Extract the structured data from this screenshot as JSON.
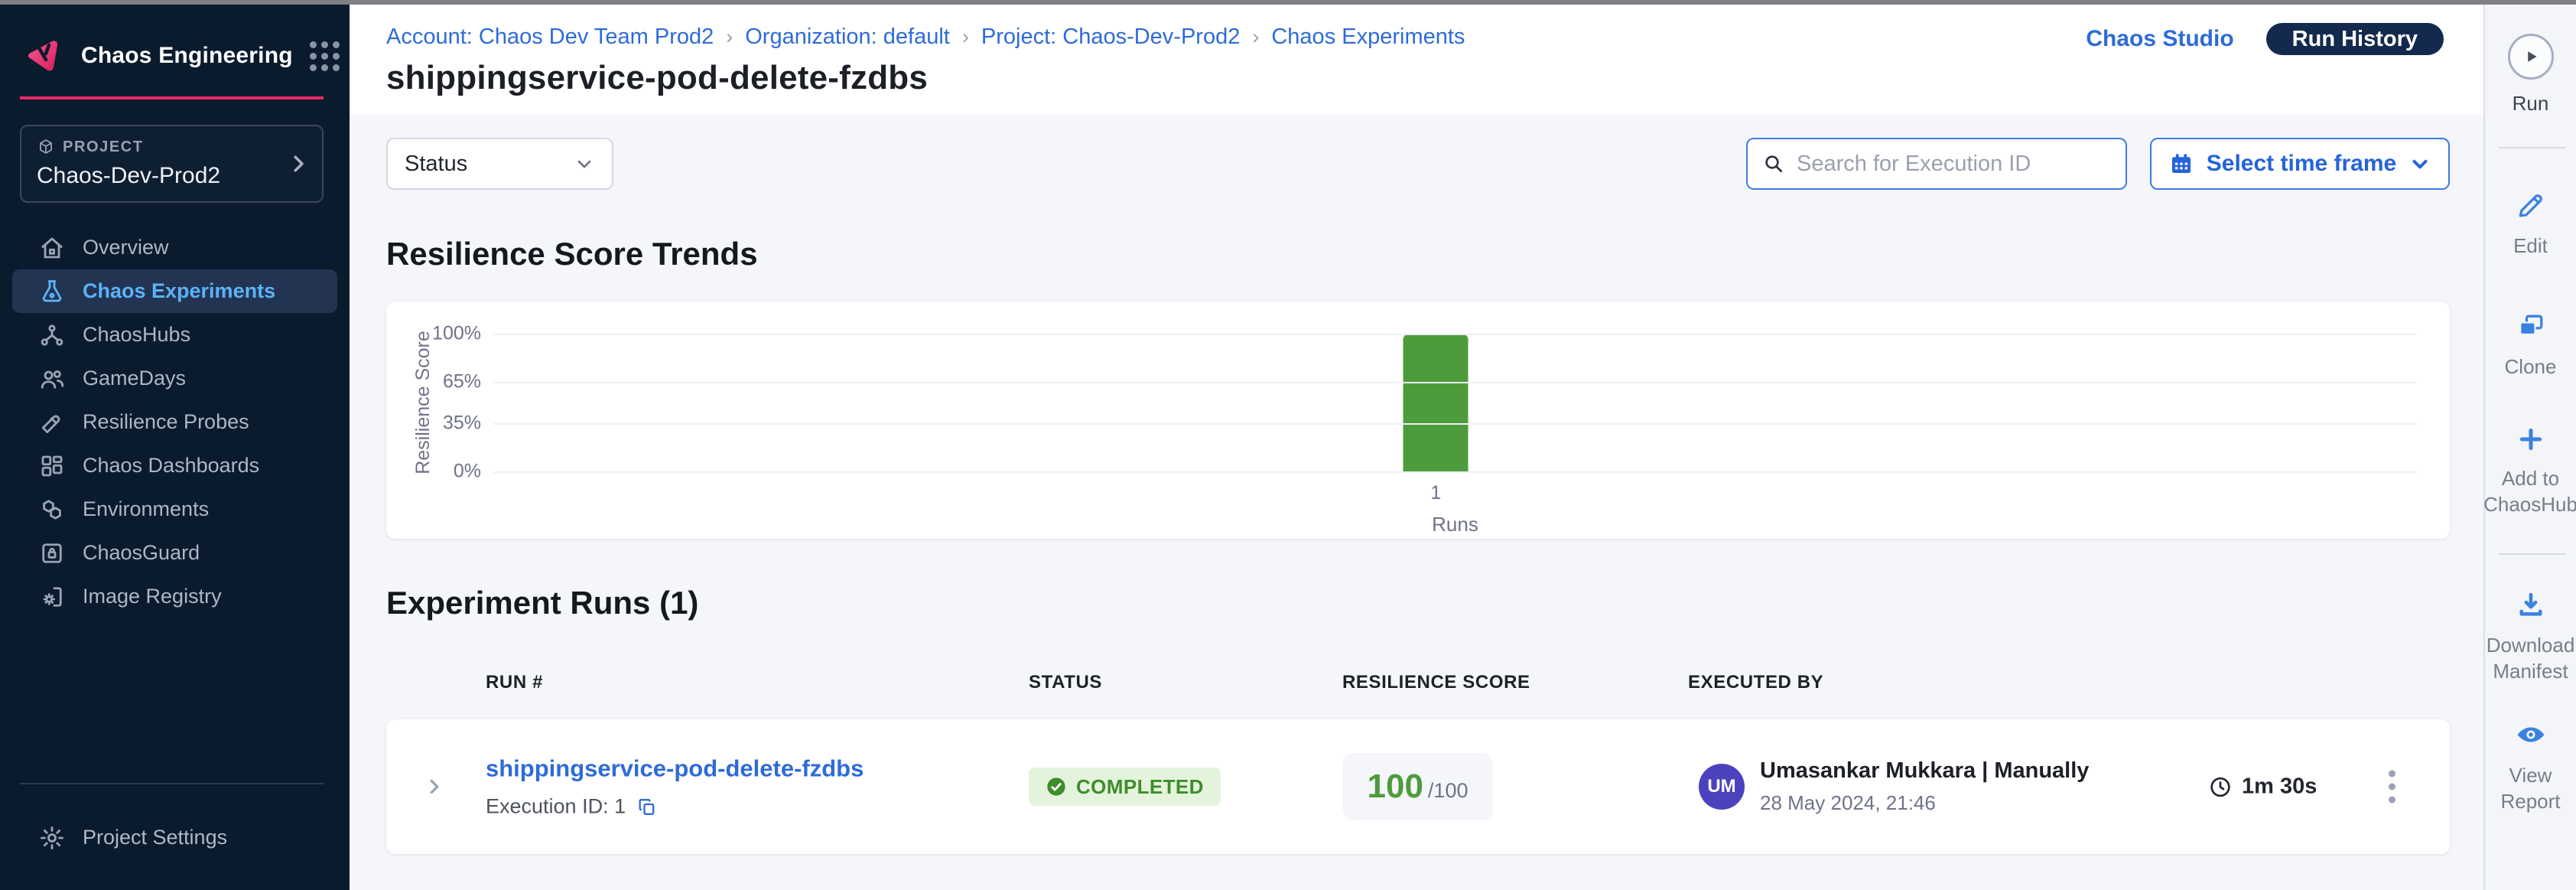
{
  "colors": {
    "sidebar_bg": "#0b1b2e",
    "accent_pink": "#e62a66",
    "primary_blue": "#2e6bd8",
    "nav_active_blue": "#5db2f5",
    "success_green": "#3e8c2d",
    "bar_green": "#4d9c3c",
    "run_history_bg": "#132a4e",
    "avatar_purple": "#4b43bd"
  },
  "sidebar": {
    "product_name": "Chaos Engineering",
    "project_label": "PROJECT",
    "project_name": "Chaos-Dev-Prod2",
    "items": [
      {
        "label": "Overview"
      },
      {
        "label": "Chaos Experiments"
      },
      {
        "label": "ChaosHubs"
      },
      {
        "label": "GameDays"
      },
      {
        "label": "Resilience Probes"
      },
      {
        "label": "Chaos Dashboards"
      },
      {
        "label": "Environments"
      },
      {
        "label": "ChaosGuard"
      },
      {
        "label": "Image Registry"
      }
    ],
    "settings_label": "Project Settings"
  },
  "header": {
    "breadcrumb": [
      "Account: Chaos Dev Team Prod2",
      "Organization: default",
      "Project: Chaos-Dev-Prod2",
      "Chaos Experiments"
    ],
    "title": "shippingservice-pod-delete-fzdbs",
    "chaos_studio_label": "Chaos Studio",
    "run_history_label": "Run History"
  },
  "filters": {
    "status_label": "Status",
    "search_placeholder": "Search for Execution ID",
    "timeframe_label": "Select time frame"
  },
  "chart_section_title": "Resilience Score Trends",
  "chart_data": {
    "type": "bar",
    "title": "Resilience Score Trends",
    "categories": [
      "1"
    ],
    "values": [
      100
    ],
    "xlabel": "Runs",
    "ylabel": "Resilience Score",
    "ylim": [
      0,
      100
    ],
    "yticks": [
      {
        "value": 0,
        "label": "0%"
      },
      {
        "value": 35,
        "label": "35%"
      },
      {
        "value": 65,
        "label": "65%"
      },
      {
        "value": 100,
        "label": "100%"
      }
    ],
    "bar_color": "#4d9c3c",
    "grid": true,
    "legend": false
  },
  "runs_section": {
    "title": "Experiment Runs (1)",
    "columns": [
      "RUN #",
      "STATUS",
      "RESILIENCE SCORE",
      "EXECUTED BY"
    ],
    "rows": [
      {
        "name": "shippingservice-pod-delete-fzdbs",
        "execution_id": "Execution ID: 1",
        "status": "COMPLETED",
        "score": "100",
        "score_total": "/100",
        "avatar_initials": "UM",
        "executed_by": "Umasankar Mukkara | Manually",
        "executed_at": "28 May 2024, 21:46",
        "duration": "1m 30s"
      }
    ]
  },
  "action_rail": {
    "run_label": "Run",
    "edit_label": "Edit",
    "clone_label": "Clone",
    "add_label": "Add to ChaosHub",
    "download_label": "Download Manifest",
    "view_label": "View Report"
  }
}
